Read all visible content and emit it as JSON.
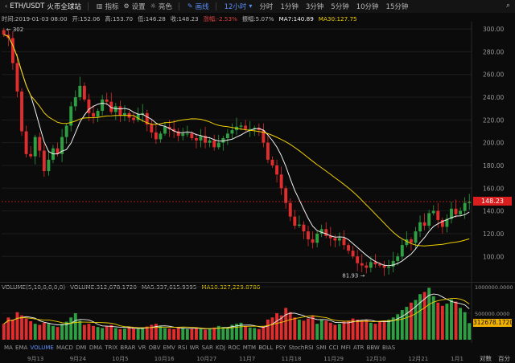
{
  "toolbar": {
    "symbol": "ETH/USDT",
    "exchange": "火币全球站",
    "indicators_label": "指标",
    "settings_label": "设置",
    "theme_label": "亮色",
    "draw_label": "画线",
    "interval_selected": "12小时",
    "timeframes": [
      "分时",
      "1分钟",
      "3分钟",
      "5分钟",
      "10分钟",
      "15分钟"
    ]
  },
  "info": {
    "time": "时间:2019-01-03 08:00",
    "open": "开:152.06",
    "high": "高:153.70",
    "low": "低:146.28",
    "close": "收:148.23",
    "change": "涨幅:-2.53%",
    "amplitude": "振幅:5.07%",
    "ma7": "MA7:140.89",
    "ma30": "MA30:127.75"
  },
  "volume_info": {
    "title": "VOLUME(5,10,0,0,0,0)",
    "volume": "VOLUME:312,678.1720",
    "ma5": "MA5:337,615.9395",
    "ma10": "MA10:327,229.8786"
  },
  "indicators": [
    "MA",
    "EMA",
    "VOLUME",
    "MACD",
    "DMI",
    "DMA",
    "TRIX",
    "BRAR",
    "VR",
    "OBV",
    "EMV",
    "RSI",
    "WR",
    "SAR",
    "KDJ",
    "ROC",
    "MTM",
    "BOLL",
    "PSY",
    "StochRSI",
    "SMI",
    "CCI",
    "MFI",
    "ATR",
    "BBW",
    "BIAS"
  ],
  "active_indicator": "VOLUME",
  "bottom": {
    "log_label": "对数",
    "percent_label": "百分"
  },
  "colors": {
    "up": "#2ea043",
    "down": "#e02d2d",
    "ma7": "#f2f2f2",
    "ma30": "#f0d000",
    "accent": "#5b8ff9",
    "price_tag": "#d81e1e",
    "vol_tag": "#f0b000"
  },
  "icons": {
    "indicators": "chart-icon",
    "settings": "gear-icon",
    "theme": "sun-icon",
    "draw": "pencil-icon",
    "search": "search-icon"
  },
  "chart_data": {
    "type": "candlestick",
    "x_ticks": [
      "9月13",
      "9月24",
      "10月5",
      "10月16",
      "10月27",
      "11月7",
      "11月18",
      "11月29",
      "12月10",
      "12月21",
      "1月1"
    ],
    "y_ticks": [
      "300.00",
      "280.00",
      "260.00",
      "240.00",
      "220.00",
      "200.00",
      "180.00",
      "160.00",
      "140.00",
      "120.00",
      "100.00"
    ],
    "ylim": [
      79,
      305
    ],
    "latest_price": "148.23",
    "high_marker": "302",
    "low_marker": "81.93",
    "closes": [
      295,
      292,
      270,
      245,
      210,
      190,
      188,
      205,
      193,
      175,
      185,
      195,
      190,
      205,
      215,
      232,
      240,
      250,
      238,
      226,
      223,
      228,
      238,
      236,
      227,
      232,
      224,
      226,
      222,
      220,
      225,
      226,
      216,
      209,
      203,
      208,
      214,
      212,
      210,
      206,
      208,
      208,
      204,
      202,
      206,
      200,
      202,
      196,
      200,
      204,
      208,
      211,
      214,
      215,
      212,
      212,
      213,
      211,
      200,
      185,
      180,
      172,
      160,
      147,
      135,
      127,
      128,
      122,
      115,
      112,
      120,
      124,
      118,
      116,
      114,
      116,
      110,
      105,
      100,
      94,
      92,
      90,
      95,
      93,
      92,
      90,
      91,
      96,
      100,
      110,
      115,
      112,
      122,
      130,
      127,
      138,
      140,
      132,
      126,
      133,
      142,
      137,
      140,
      147,
      148
    ],
    "volume_ticks": [
      "1000000.0000",
      "500000.0000"
    ],
    "volume_latest": "312678.1720",
    "volumes": [
      300,
      420,
      380,
      520,
      460,
      400,
      350,
      300,
      280,
      320,
      300,
      260,
      240,
      300,
      340,
      420,
      500,
      360,
      280,
      300,
      260,
      240,
      220,
      260,
      280,
      220,
      200,
      210,
      230,
      220,
      200,
      210,
      250,
      280,
      300,
      260,
      220,
      210,
      200,
      240,
      220,
      200,
      210,
      230,
      200,
      190,
      210,
      230,
      260,
      240,
      220,
      280,
      300,
      320,
      260,
      230,
      220,
      200,
      260,
      380,
      420,
      500,
      460,
      600,
      520,
      420,
      380,
      360,
      400,
      460,
      300,
      380,
      360,
      320,
      280,
      300,
      340,
      360,
      400,
      380,
      360,
      380,
      320,
      300,
      340,
      360,
      380,
      420,
      480,
      560,
      620,
      700,
      750,
      860,
      900,
      980,
      820,
      700,
      640,
      680,
      760,
      720,
      600,
      520,
      313
    ]
  }
}
